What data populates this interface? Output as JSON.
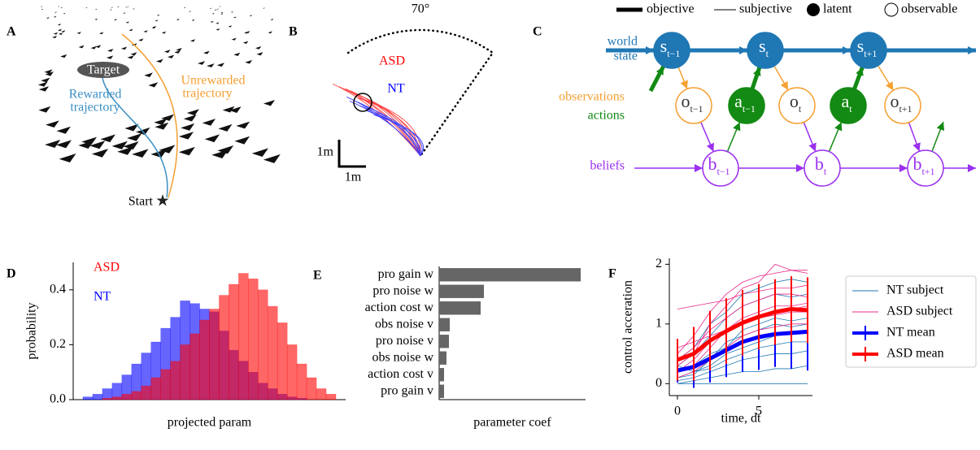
{
  "panel_labels": [
    "A",
    "B",
    "C"
  ],
  "panel_a": {
    "target": "Target",
    "rewarded": [
      "Rewarded",
      "trajectory"
    ],
    "unrewarded": [
      "Unrewarded",
      "trajectory"
    ],
    "start": "Start"
  },
  "panel_b": {
    "angle": "70°",
    "groups": [
      "ASD",
      "NT"
    ],
    "scale_y": "1m",
    "scale_x": "1m"
  },
  "panel_c": {
    "legend": [
      "objective",
      "subjective",
      "latent",
      "observable"
    ],
    "rows": {
      "world_state": [
        "world",
        "state"
      ],
      "observations": "observations",
      "actions": "actions",
      "beliefs": "beliefs"
    },
    "nodes": {
      "s": [
        {
          "main": "s",
          "sub": "t−1"
        },
        {
          "main": "s",
          "sub": "t"
        },
        {
          "main": "s",
          "sub": "t+1"
        }
      ],
      "o": [
        {
          "main": "o",
          "sub": "t−1"
        },
        {
          "main": "o",
          "sub": "t"
        },
        {
          "main": "o",
          "sub": "t+1"
        }
      ],
      "a": [
        {
          "main": "a",
          "sub": "t−1"
        },
        {
          "main": "a",
          "sub": "t"
        }
      ],
      "b": [
        {
          "main": "b",
          "sub": "t−1"
        },
        {
          "main": "b",
          "sub": "t"
        },
        {
          "main": "b",
          "sub": "t+1"
        }
      ]
    }
  },
  "chart_data": [
    {
      "type": "histogram",
      "label": "D",
      "xlabel": "projected param",
      "ylabel": "probability",
      "bins": [
        -3.25,
        -3,
        -2.75,
        -2.5,
        -2.25,
        -2,
        -1.75,
        -1.5,
        -1.25,
        -1,
        -0.75,
        -0.5,
        -0.25,
        0,
        0.25,
        0.5,
        0.75,
        1,
        1.25,
        1.5,
        1.75,
        2,
        2.25,
        2.5,
        2.75,
        3,
        3.25
      ],
      "series": [
        {
          "name": "ASD",
          "color": "#ff0000",
          "values": [
            0,
            0,
            0.005,
            0.01,
            0.02,
            0.03,
            0.05,
            0.08,
            0.11,
            0.14,
            0.2,
            0.24,
            0.29,
            0.33,
            0.38,
            0.42,
            0.46,
            0.44,
            0.4,
            0.34,
            0.28,
            0.2,
            0.13,
            0.08,
            0.04,
            0.02
          ]
        },
        {
          "name": "NT",
          "color": "#0000ff",
          "values": [
            0.01,
            0.02,
            0.04,
            0.06,
            0.09,
            0.13,
            0.17,
            0.21,
            0.26,
            0.3,
            0.36,
            0.35,
            0.33,
            0.32,
            0.25,
            0.18,
            0.14,
            0.1,
            0.06,
            0.04,
            0.02,
            0.01,
            0.005,
            0,
            0,
            0
          ]
        }
      ],
      "xlim": [
        -3.5,
        3.5
      ],
      "ylim": [
        0,
        0.5
      ],
      "yticks": [
        {
          "value": 0,
          "label": "0.0"
        },
        0.2,
        0.4
      ]
    },
    {
      "type": "barh",
      "label": "E",
      "xlabel": "parameter coef",
      "categories": [
        "pro gain w",
        "pro noise w",
        "action cost w",
        "obs noise v",
        "pro noise v",
        "obs noise w",
        "action cost v",
        "pro gain v"
      ],
      "values": [
        3.48,
        1.1,
        1.02,
        0.26,
        0.24,
        0.18,
        0.12,
        0.12
      ],
      "color": "#666666",
      "xlim": [
        0,
        3.6
      ]
    },
    {
      "type": "line",
      "label": "F",
      "xlabel": "time, dt",
      "ylabel": "control acceration",
      "x": [
        0,
        1,
        2,
        3,
        4,
        5,
        6,
        7,
        8
      ],
      "xlim": [
        -0.5,
        8.3
      ],
      "ylim": [
        -0.2,
        2.1
      ],
      "xticks": [
        0,
        5
      ],
      "yticks": [
        0,
        1,
        2
      ],
      "legend": "outside right",
      "series": [
        {
          "name": "NT subject",
          "color": "#1f77b4",
          "lines": [
            [
              0.1,
              0.2,
              0.3,
              0.5,
              0.6,
              0.7,
              0.8,
              0.85,
              0.9
            ],
            [
              0.3,
              0.5,
              0.8,
              1.1,
              1.3,
              1.4,
              1.5,
              1.45,
              1.5
            ],
            [
              0,
              0.05,
              0.1,
              0.15,
              0.2,
              0.2,
              0.25,
              0.25,
              0.3
            ],
            [
              0.2,
              0.3,
              0.5,
              0.6,
              0.9,
              1,
              1.1,
              1.05,
              1.1
            ],
            [
              0.4,
              0.6,
              1,
              1.2,
              1.5,
              1.6,
              1.7,
              1.75,
              1.7
            ],
            [
              0.05,
              0.1,
              0.2,
              0.3,
              0.4,
              0.45,
              0.5,
              0.5,
              0.55
            ],
            [
              0.3,
              0.2,
              0.25,
              0.4,
              0.5,
              0.6,
              0.65,
              0.7,
              0.7
            ],
            [
              0.1,
              0.15,
              0.4,
              0.7,
              0.8,
              0.9,
              1,
              0.95,
              1
            ],
            [
              0,
              0,
              0,
              0,
              0,
              0,
              0,
              0,
              0
            ]
          ]
        },
        {
          "name": "ASD subject",
          "color": "#e7298a",
          "lines": [
            [
              0.5,
              0.8,
              1.2,
              1.5,
              1.7,
              1.8,
              1.85,
              1.9,
              1.9
            ],
            [
              0.4,
              0.6,
              0.9,
              1.1,
              1.3,
              1.4,
              1.5,
              1.5,
              1.45
            ],
            [
              1.25,
              1.3,
              1.35,
              1.4,
              1.5,
              1.55,
              1.6,
              1.6,
              1.65
            ],
            [
              0.2,
              0.4,
              0.7,
              0.9,
              1,
              1.1,
              1.15,
              1.2,
              1.2
            ],
            [
              0.3,
              0.5,
              1,
              1.3,
              1.6,
              1.7,
              2,
              1.9,
              1.85
            ],
            [
              0.1,
              0.2,
              0.4,
              0.6,
              0.8,
              0.9,
              0.95,
              1,
              1
            ],
            [
              0.6,
              0.7,
              0.8,
              0.9,
              1,
              1.1,
              1.2,
              1.25,
              1.3
            ],
            [
              0.2,
              0.3,
              0.6,
              0.9,
              1.1,
              1.2,
              1.3,
              1.3,
              1.35
            ]
          ]
        },
        {
          "name": "NT mean",
          "color": "#0000ff",
          "values": [
            0.22,
            0.28,
            0.42,
            0.56,
            0.7,
            0.78,
            0.83,
            0.85,
            0.87
          ],
          "errors": [
            0.2,
            0.35,
            0.4,
            0.45,
            0.5,
            0.55,
            0.55,
            0.6,
            0.65
          ]
        },
        {
          "name": "ASD mean",
          "color": "#ff0000",
          "values": [
            0.4,
            0.5,
            0.72,
            0.88,
            1.02,
            1.12,
            1.2,
            1.25,
            1.23
          ],
          "errors": [
            0.35,
            0.45,
            0.5,
            0.55,
            0.55,
            0.55,
            0.55,
            0.55,
            0.55
          ]
        }
      ]
    }
  ]
}
